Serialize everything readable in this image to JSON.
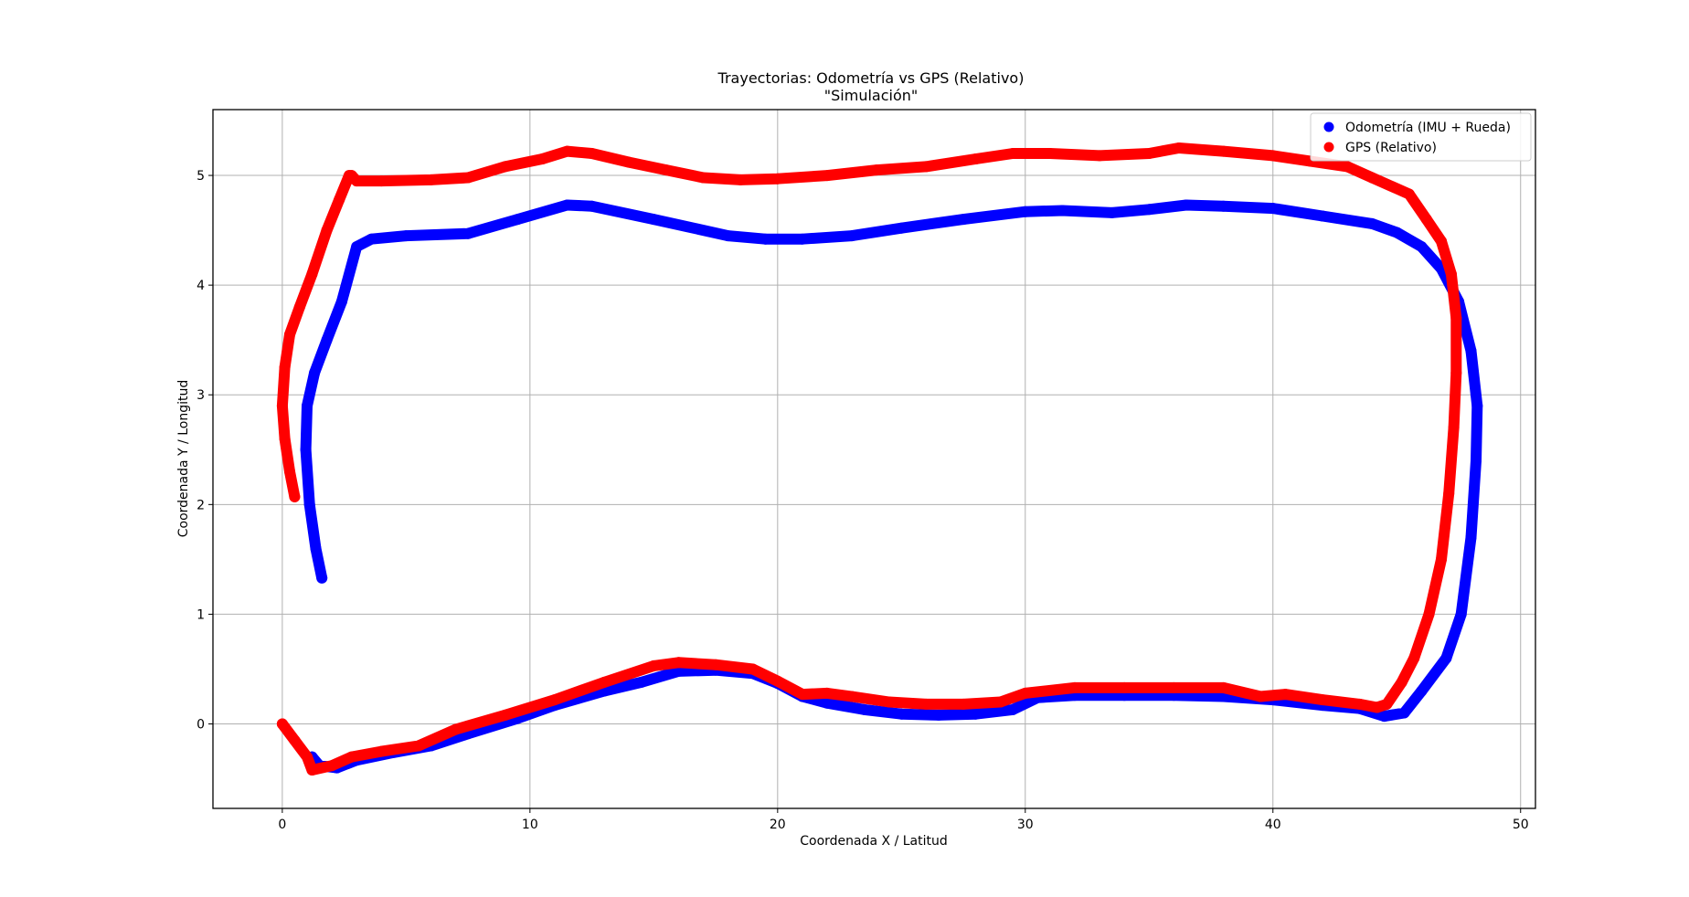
{
  "chart_data": {
    "type": "scatter",
    "title": "Trayectorias: Odometría vs GPS (Relativo)",
    "subtitle": "\"Simulación\"",
    "xlabel": "Coordenada X / Latitud",
    "ylabel": "Coordenada Y / Longitud",
    "xlim": [
      -2.8,
      50.6
    ],
    "ylim": [
      -0.77,
      5.6
    ],
    "xticks": [
      0,
      10,
      20,
      30,
      40,
      50
    ],
    "yticks": [
      0,
      1,
      2,
      3,
      4,
      5
    ],
    "grid": true,
    "legend_position": "top-right",
    "series": [
      {
        "name": "Odometría (IMU + Rueda)",
        "color": "#0000ff",
        "points": [
          [
            1.6,
            1.33
          ],
          [
            1.35,
            1.6
          ],
          [
            1.1,
            2.0
          ],
          [
            0.95,
            2.5
          ],
          [
            1.0,
            2.9
          ],
          [
            1.3,
            3.2
          ],
          [
            1.8,
            3.5
          ],
          [
            2.4,
            3.85
          ],
          [
            3.0,
            4.35
          ],
          [
            3.6,
            4.42
          ],
          [
            5.0,
            4.45
          ],
          [
            7.5,
            4.47
          ],
          [
            9.5,
            4.6
          ],
          [
            11.5,
            4.73
          ],
          [
            12.5,
            4.72
          ],
          [
            15.0,
            4.6
          ],
          [
            18.0,
            4.45
          ],
          [
            19.5,
            4.42
          ],
          [
            21.0,
            4.42
          ],
          [
            23.0,
            4.45
          ],
          [
            25.0,
            4.52
          ],
          [
            27.5,
            4.6
          ],
          [
            30.0,
            4.67
          ],
          [
            31.5,
            4.68
          ],
          [
            33.5,
            4.66
          ],
          [
            35.0,
            4.69
          ],
          [
            36.5,
            4.73
          ],
          [
            38.0,
            4.72
          ],
          [
            40.0,
            4.7
          ],
          [
            42.0,
            4.63
          ],
          [
            44.0,
            4.56
          ],
          [
            45.0,
            4.48
          ],
          [
            46.0,
            4.35
          ],
          [
            46.8,
            4.15
          ],
          [
            47.5,
            3.85
          ],
          [
            48.0,
            3.4
          ],
          [
            48.25,
            2.9
          ],
          [
            48.2,
            2.4
          ],
          [
            48.0,
            1.7
          ],
          [
            47.6,
            1.0
          ],
          [
            47.0,
            0.6
          ],
          [
            46.0,
            0.3
          ],
          [
            45.3,
            0.1
          ],
          [
            44.5,
            0.07
          ],
          [
            43.5,
            0.14
          ],
          [
            42.0,
            0.17
          ],
          [
            40.0,
            0.22
          ],
          [
            38.0,
            0.25
          ],
          [
            36.0,
            0.26
          ],
          [
            34.0,
            0.26
          ],
          [
            32.0,
            0.26
          ],
          [
            30.5,
            0.24
          ],
          [
            29.5,
            0.13
          ],
          [
            28.0,
            0.09
          ],
          [
            26.5,
            0.08
          ],
          [
            25.0,
            0.09
          ],
          [
            23.5,
            0.13
          ],
          [
            22.0,
            0.19
          ],
          [
            21.0,
            0.25
          ],
          [
            20.0,
            0.37
          ],
          [
            19.0,
            0.46
          ],
          [
            17.5,
            0.49
          ],
          [
            16.0,
            0.48
          ],
          [
            14.5,
            0.38
          ],
          [
            13.0,
            0.3
          ],
          [
            11.0,
            0.17
          ],
          [
            9.5,
            0.05
          ],
          [
            7.5,
            -0.09
          ],
          [
            6.0,
            -0.2
          ],
          [
            4.5,
            -0.26
          ],
          [
            3.0,
            -0.33
          ],
          [
            2.2,
            -0.4
          ],
          [
            1.5,
            -0.38
          ],
          [
            1.2,
            -0.3
          ]
        ]
      },
      {
        "name": "GPS (Relativo)",
        "color": "#ff0000",
        "points": [
          [
            0.5,
            2.07
          ],
          [
            0.3,
            2.3
          ],
          [
            0.1,
            2.6
          ],
          [
            0.0,
            2.9
          ],
          [
            0.1,
            3.25
          ],
          [
            0.3,
            3.55
          ],
          [
            0.7,
            3.8
          ],
          [
            1.2,
            4.1
          ],
          [
            1.8,
            4.5
          ],
          [
            2.3,
            4.78
          ],
          [
            2.7,
            5.0
          ],
          [
            2.8,
            5.0
          ],
          [
            3.0,
            4.95
          ],
          [
            4.0,
            4.95
          ],
          [
            6.0,
            4.96
          ],
          [
            7.5,
            4.98
          ],
          [
            9.0,
            5.08
          ],
          [
            10.5,
            5.15
          ],
          [
            11.5,
            5.22
          ],
          [
            12.5,
            5.2
          ],
          [
            14.0,
            5.12
          ],
          [
            15.5,
            5.05
          ],
          [
            17.0,
            4.98
          ],
          [
            18.5,
            4.96
          ],
          [
            20.0,
            4.97
          ],
          [
            22.0,
            5.0
          ],
          [
            24.0,
            5.05
          ],
          [
            26.0,
            5.08
          ],
          [
            28.0,
            5.15
          ],
          [
            29.5,
            5.2
          ],
          [
            31.0,
            5.2
          ],
          [
            33.0,
            5.18
          ],
          [
            35.0,
            5.2
          ],
          [
            36.2,
            5.25
          ],
          [
            38.0,
            5.22
          ],
          [
            40.0,
            5.18
          ],
          [
            41.5,
            5.13
          ],
          [
            43.0,
            5.08
          ],
          [
            44.0,
            4.98
          ],
          [
            45.5,
            4.83
          ],
          [
            46.2,
            4.6
          ],
          [
            46.8,
            4.4
          ],
          [
            47.2,
            4.1
          ],
          [
            47.4,
            3.7
          ],
          [
            47.4,
            3.2
          ],
          [
            47.3,
            2.7
          ],
          [
            47.1,
            2.1
          ],
          [
            46.8,
            1.5
          ],
          [
            46.3,
            1.0
          ],
          [
            45.7,
            0.6
          ],
          [
            45.2,
            0.38
          ],
          [
            44.6,
            0.18
          ],
          [
            44.2,
            0.15
          ],
          [
            43.5,
            0.18
          ],
          [
            42.0,
            0.22
          ],
          [
            40.5,
            0.27
          ],
          [
            39.5,
            0.25
          ],
          [
            38.0,
            0.33
          ],
          [
            36.0,
            0.33
          ],
          [
            34.0,
            0.33
          ],
          [
            32.0,
            0.33
          ],
          [
            30.0,
            0.28
          ],
          [
            29.0,
            0.2
          ],
          [
            27.5,
            0.18
          ],
          [
            26.0,
            0.18
          ],
          [
            24.5,
            0.2
          ],
          [
            23.0,
            0.25
          ],
          [
            22.0,
            0.28
          ],
          [
            21.0,
            0.27
          ],
          [
            20.0,
            0.39
          ],
          [
            19.0,
            0.5
          ],
          [
            17.5,
            0.54
          ],
          [
            16.0,
            0.56
          ],
          [
            15.0,
            0.53
          ],
          [
            13.0,
            0.38
          ],
          [
            11.0,
            0.22
          ],
          [
            9.0,
            0.08
          ],
          [
            7.0,
            -0.05
          ],
          [
            5.5,
            -0.2
          ],
          [
            4.0,
            -0.25
          ],
          [
            2.8,
            -0.3
          ],
          [
            2.0,
            -0.38
          ],
          [
            1.2,
            -0.42
          ],
          [
            1.0,
            -0.3
          ],
          [
            0.5,
            -0.15
          ],
          [
            0.0,
            0.0
          ]
        ]
      }
    ]
  }
}
